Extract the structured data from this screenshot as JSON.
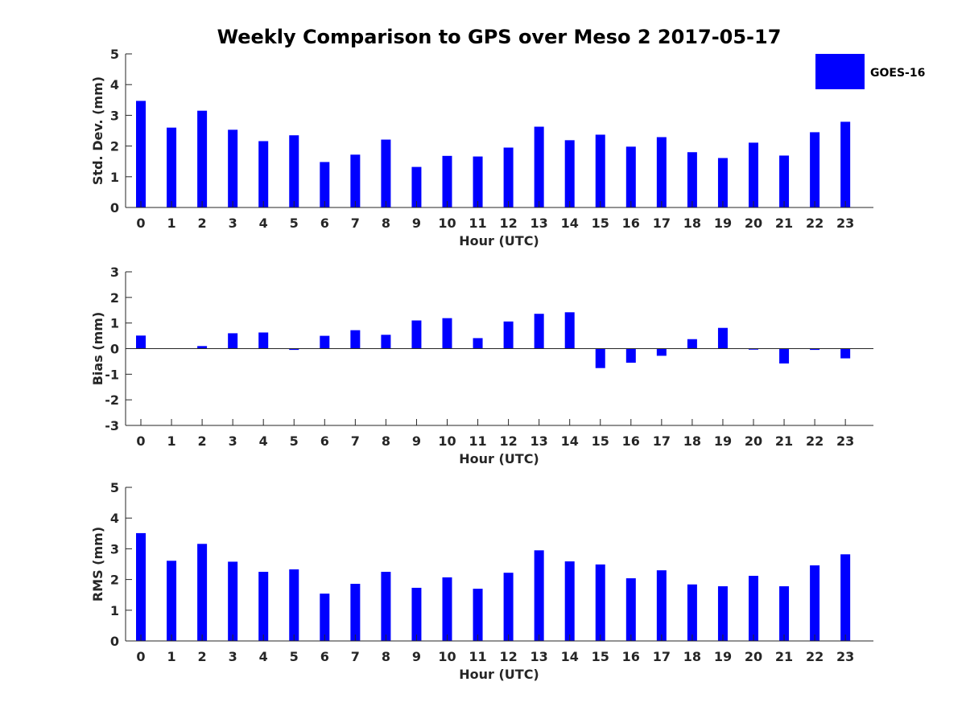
{
  "chart_data": {
    "type": "bar",
    "title": "Weekly Comparison to GPS over Meso 2 2017-05-17",
    "legend": {
      "label": "GOES-16",
      "color": "#0000ff",
      "placement": "top-right"
    },
    "categories": [
      "0",
      "1",
      "2",
      "3",
      "4",
      "5",
      "6",
      "7",
      "8",
      "9",
      "10",
      "11",
      "12",
      "13",
      "14",
      "15",
      "16",
      "17",
      "18",
      "19",
      "20",
      "21",
      "22",
      "23"
    ],
    "panels": [
      {
        "id": "std",
        "ylabel": "Std. Dev. (mm)",
        "xlabel": "Hour (UTC)",
        "ylim": [
          0,
          5
        ],
        "yticks": [
          "0",
          "1",
          "2",
          "3",
          "4",
          "5"
        ],
        "values": [
          3.47,
          2.6,
          3.15,
          2.53,
          2.16,
          2.35,
          1.48,
          1.72,
          2.21,
          1.32,
          1.68,
          1.66,
          1.95,
          2.63,
          2.19,
          2.37,
          1.98,
          2.29,
          1.8,
          1.61,
          2.11,
          1.69,
          2.45,
          2.79
        ]
      },
      {
        "id": "bias",
        "ylabel": "Bias (mm)",
        "xlabel": "Hour (UTC)",
        "ylim": [
          -3,
          3
        ],
        "yticks": [
          "-3",
          "-2",
          "-1",
          "0",
          "1",
          "2",
          "3"
        ],
        "values": [
          0.51,
          0.0,
          0.1,
          0.6,
          0.63,
          -0.05,
          0.5,
          0.72,
          0.54,
          1.1,
          1.19,
          0.41,
          1.06,
          1.36,
          1.42,
          -0.76,
          -0.55,
          -0.28,
          0.37,
          0.81,
          -0.04,
          -0.58,
          -0.05,
          -0.38
        ]
      },
      {
        "id": "rms",
        "ylabel": "RMS (mm)",
        "xlabel": "Hour (UTC)",
        "ylim": [
          0,
          5
        ],
        "yticks": [
          "0",
          "1",
          "2",
          "3",
          "4",
          "5"
        ],
        "values": [
          3.51,
          2.61,
          3.16,
          2.58,
          2.25,
          2.33,
          1.54,
          1.86,
          2.25,
          1.73,
          2.07,
          1.7,
          2.22,
          2.95,
          2.59,
          2.49,
          2.04,
          2.3,
          1.84,
          1.78,
          2.12,
          1.78,
          2.46,
          2.82
        ]
      }
    ]
  }
}
